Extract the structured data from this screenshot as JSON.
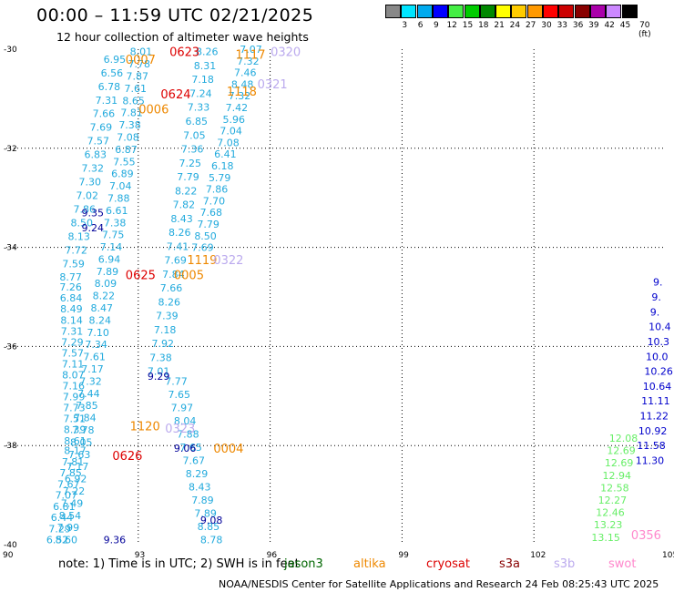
{
  "title": "00:00 – 11:59 UTC 02/21/2025",
  "subtitle": "12 hour collection of altimeter wave heights",
  "color_scale": {
    "labels": [
      "3",
      "6",
      "9",
      "12",
      "15",
      "18",
      "21",
      "24",
      "27",
      "30",
      "33",
      "36",
      "39",
      "42",
      "45",
      "70 (ft)"
    ],
    "colors": [
      "#888888",
      "#00e5ff",
      "#00aaee",
      "#0000ff",
      "#44ee44",
      "#00cc00",
      "#008800",
      "#ffff00",
      "#ffcc00",
      "#ff9900",
      "#ff0000",
      "#cc0000",
      "#880000",
      "#aa00aa",
      "#cc88ff",
      "#000000"
    ]
  },
  "axes": {
    "lat_labels": [
      "-30",
      "-32",
      "-34",
      "-36",
      "-38",
      "-40"
    ],
    "lon_labels": [
      "90",
      "93",
      "96",
      "99",
      "102",
      "105"
    ]
  },
  "chart_data": {
    "type": "scatter",
    "xlim": [
      90,
      105
    ],
    "ylim": [
      -40,
      -30
    ],
    "grid": true,
    "pass_labels": [
      {
        "text": "0623",
        "lon": 94.0,
        "lat": -30.05,
        "color": "#dd0000"
      },
      {
        "text": "0007",
        "lon": 93.0,
        "lat": -30.2,
        "color": "#ee8800"
      },
      {
        "text": "1117",
        "lon": 95.5,
        "lat": -30.1,
        "color": "#ee8800"
      },
      {
        "text": "0320",
        "lon": 96.3,
        "lat": -30.05,
        "color": "#bbaaee"
      },
      {
        "text": "1118",
        "lon": 95.3,
        "lat": -30.85,
        "color": "#ee8800"
      },
      {
        "text": "0321",
        "lon": 96.0,
        "lat": -30.7,
        "color": "#bbaaee"
      },
      {
        "text": "0624",
        "lon": 93.8,
        "lat": -30.9,
        "color": "#dd0000"
      },
      {
        "text": "0006",
        "lon": 93.3,
        "lat": -31.2,
        "color": "#ee8800"
      },
      {
        "text": "1119",
        "lon": 94.4,
        "lat": -34.25,
        "color": "#ee8800"
      },
      {
        "text": "0322",
        "lon": 95.0,
        "lat": -34.25,
        "color": "#bbaaee"
      },
      {
        "text": "0625",
        "lon": 93.0,
        "lat": -34.55,
        "color": "#dd0000"
      },
      {
        "text": "0005",
        "lon": 94.1,
        "lat": -34.55,
        "color": "#ee8800"
      },
      {
        "text": "1120",
        "lon": 93.1,
        "lat": -37.6,
        "color": "#ee8800"
      },
      {
        "text": "0323",
        "lon": 93.9,
        "lat": -37.65,
        "color": "#bbaaee"
      },
      {
        "text": "0004",
        "lon": 95.0,
        "lat": -38.05,
        "color": "#ee8800"
      },
      {
        "text": "0626",
        "lon": 92.7,
        "lat": -38.2,
        "color": "#dd0000"
      },
      {
        "text": "0356",
        "lon": 104.5,
        "lat": -39.8,
        "color": "#ff88cc"
      }
    ],
    "tracks": [
      {
        "color": "#22aadd",
        "lon_start": 93.1,
        "lat_start": -30.05,
        "lon_end": 91.4,
        "lat_end": -39.9,
        "values": [
          "8.01",
          "7.78",
          "7.87",
          "7.61",
          "8.65",
          "7.81",
          "7.38",
          "7.08",
          "6.87",
          "7.55",
          "6.89",
          "7.04",
          "7.88",
          "6.61",
          "7.38",
          "7.75",
          "7.14",
          "6.94",
          "7.89",
          "8.09",
          "8.22",
          "8.47",
          "8.24",
          "7.10",
          "7.34",
          "7.61",
          "7.17",
          "7.32",
          "7.44",
          "7.85",
          "7.84",
          "7.78",
          "8.05",
          "7.63",
          "7.17",
          "6.92",
          "7.22",
          "7.49",
          "8.54",
          "7.99",
          "8.60"
        ]
      },
      {
        "color": "#22aadd",
        "lon_start": 92.5,
        "lat_start": -30.2,
        "lon_end": 91.5,
        "lat_end": -34.6,
        "values": [
          "6.95",
          "6.56",
          "6.78",
          "7.31",
          "7.66",
          "7.69",
          "7.57",
          "6.83",
          "7.32",
          "7.30",
          "7.02",
          "7.86",
          "8.50",
          "8.13",
          "7.72",
          "7.59",
          "8.77"
        ]
      },
      {
        "color": "#22aadd",
        "lon_start": 94.6,
        "lat_start": -30.05,
        "lon_end": 93.5,
        "lat_end": -36.5,
        "values": [
          "8.26",
          "8.31",
          "7.18",
          "7.24",
          "7.33",
          "6.85",
          "7.05",
          "7.36",
          "7.25",
          "7.79",
          "8.22",
          "7.82",
          "8.43",
          "8.26",
          "7.41",
          "7.69",
          "7.84",
          "7.66",
          "8.26",
          "7.39",
          "7.18",
          "7.92",
          "7.38",
          "7.01"
        ]
      },
      {
        "color": "#22aadd",
        "lon_start": 95.6,
        "lat_start": -30.0,
        "lon_end": 94.5,
        "lat_end": -34.0,
        "values": [
          "7.07",
          "7.32",
          "7.46",
          "8.48",
          "7.32",
          "7.42",
          "5.96",
          "7.04",
          "7.08",
          "6.41",
          "6.18",
          "5.79",
          "7.86",
          "7.70",
          "7.68",
          "7.79",
          "8.50",
          "7.69"
        ]
      },
      {
        "color": "#22aadd",
        "lon_start": 91.5,
        "lat_start": -34.8,
        "lon_end": 91.6,
        "lat_end": -37.9,
        "values": [
          "7.26",
          "6.84",
          "8.49",
          "8.14",
          "7.31",
          "7.29",
          "7.57",
          "7.11",
          "8.07",
          "7.16",
          "7.99",
          "7.73",
          "7.51",
          "8.39",
          "8.61"
        ]
      },
      {
        "color": "#22aadd",
        "lon_start": 91.6,
        "lat_start": -38.1,
        "lon_end": 91.2,
        "lat_end": -39.9,
        "values": [
          "8.17",
          "7.81",
          "7.85",
          "7.67",
          "7.07",
          "6.81",
          "6.44",
          "7.29",
          "6.52"
        ]
      },
      {
        "color": "#22aadd",
        "lon_start": 93.9,
        "lat_start": -36.7,
        "lon_end": 94.7,
        "lat_end": -39.9,
        "values": [
          "7.77",
          "7.65",
          "7.97",
          "8.04",
          "7.88",
          "7.65",
          "7.67",
          "8.29",
          "8.43",
          "7.89",
          "7.89",
          "8.85",
          "8.78"
        ]
      },
      {
        "color": "#000099",
        "lon_start": 92.0,
        "lat_start": -33.3,
        "lon_end": 92.0,
        "lat_end": -33.6,
        "values": [
          "9.35",
          "9.24"
        ]
      },
      {
        "color": "#000099",
        "lon_start": 93.5,
        "lat_start": -36.6,
        "lon_end": 94.7,
        "lat_end": -39.5,
        "values": [
          "9.29",
          "9.06",
          "9.08"
        ]
      },
      {
        "color": "#000099",
        "lon_start": 92.5,
        "lat_start": -39.9,
        "lon_end": 92.5,
        "lat_end": -39.9,
        "values": [
          "9.36"
        ]
      },
      {
        "color": "#0000cc",
        "lon_start": 105.0,
        "lat_start": -34.7,
        "lon_end": 104.6,
        "lat_end": -38.3,
        "values": [
          "9.",
          "9.",
          "9.",
          "10.4",
          "10.3",
          "10.0",
          "10.26",
          "10.64",
          "11.11",
          "11.22",
          "10.92",
          "11.58",
          "11.30"
        ]
      },
      {
        "color": "#66ee66",
        "lon_start": 104.0,
        "lat_start": -37.85,
        "lon_end": 103.6,
        "lat_end": -39.85,
        "values": [
          "12.08",
          "12.69",
          "12.69",
          "12.94",
          "12.58",
          "12.27",
          "12.46",
          "13.23",
          "13.15"
        ]
      }
    ]
  },
  "footnote": "note: 1) Time is in UTC; 2) SWH is in feet",
  "satellites": [
    {
      "name": "jason3",
      "color": "#006600"
    },
    {
      "name": "altika",
      "color": "#ee8800"
    },
    {
      "name": "cryosat",
      "color": "#dd0000"
    },
    {
      "name": "s3a",
      "color": "#880000"
    },
    {
      "name": "s3b",
      "color": "#bbaaee"
    },
    {
      "name": "swot",
      "color": "#ff88cc"
    }
  ],
  "credit": "NOAA/NESDIS Center for Satellite Applications and Research    24 Feb 08:25:43 UTC 2025"
}
